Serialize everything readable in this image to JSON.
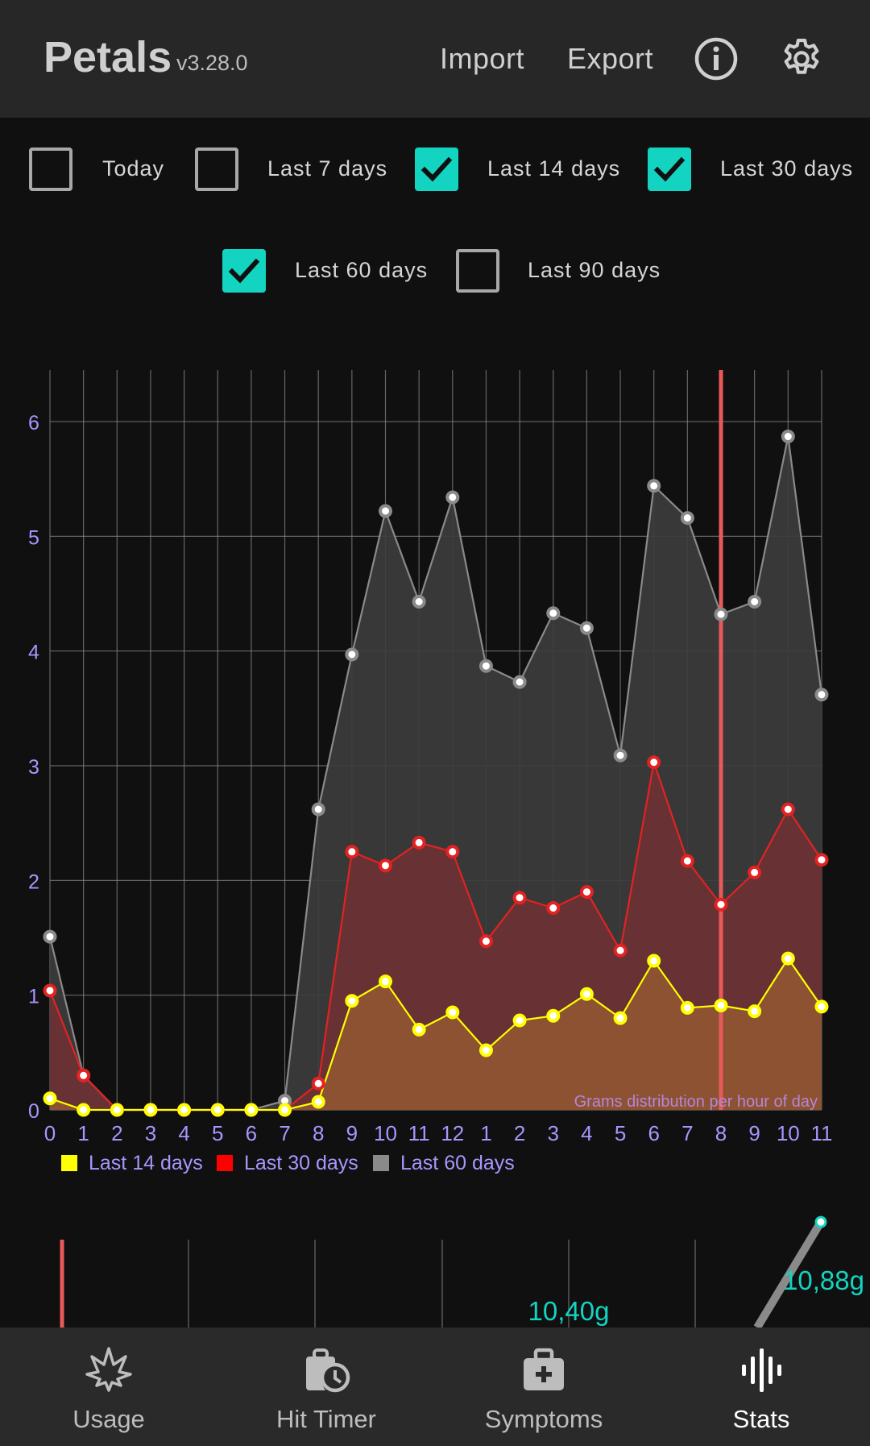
{
  "header": {
    "title": "Petals",
    "version": "v3.28.0",
    "import_label": "Import",
    "export_label": "Export",
    "info_icon": "info-icon",
    "settings_icon": "gear-icon"
  },
  "filters": [
    {
      "label": "Today",
      "checked": false
    },
    {
      "label": "Last 7 days",
      "checked": false
    },
    {
      "label": "Last 14 days",
      "checked": true
    },
    {
      "label": "Last 30 days",
      "checked": true
    },
    {
      "label": "Last 60 days",
      "checked": true
    },
    {
      "label": "Last 90 days",
      "checked": false
    }
  ],
  "chart_data": [
    {
      "type": "area",
      "title": "",
      "annotation": "Grams distribution per hour of day",
      "xlabel": "",
      "ylabel": "",
      "categories": [
        "0",
        "1",
        "2",
        "3",
        "4",
        "5",
        "6",
        "7",
        "8",
        "9",
        "10",
        "11",
        "12",
        "1",
        "2",
        "3",
        "4",
        "5",
        "6",
        "7",
        "8",
        "9",
        "10",
        "11"
      ],
      "ylim": [
        0,
        6.45
      ],
      "yticks": [
        0,
        1,
        2,
        3,
        4,
        5,
        6
      ],
      "grid": true,
      "legend_position": "bottom-left",
      "highlight_category_index": 20,
      "highlight_color": "#e85a5a",
      "series": [
        {
          "name": "Last 60 days",
          "color": "#8a8a8a",
          "fill": "#3c3c3c",
          "values": [
            1.51,
            0.3,
            0,
            0,
            0,
            0,
            0,
            0.08,
            2.62,
            3.97,
            5.22,
            4.43,
            5.34,
            3.87,
            3.73,
            4.33,
            4.2,
            3.09,
            5.44,
            5.16,
            4.32,
            4.43,
            5.87,
            3.62
          ]
        },
        {
          "name": "Last 30 days",
          "color": "#e32222",
          "fill": "#6c3134",
          "values": [
            1.04,
            0.3,
            0,
            0,
            0,
            0,
            0,
            0,
            0.23,
            2.25,
            2.13,
            2.33,
            2.25,
            1.47,
            1.85,
            1.76,
            1.9,
            1.39,
            3.03,
            2.17,
            1.79,
            2.07,
            2.62,
            2.18
          ]
        },
        {
          "name": "Last 14 days",
          "color": "#ffff00",
          "fill": "#8f5532",
          "values": [
            0.1,
            0,
            0,
            0,
            0,
            0,
            0,
            0,
            0.07,
            0.95,
            1.12,
            0.7,
            0.85,
            0.52,
            0.78,
            0.82,
            1.01,
            0.8,
            1.3,
            0.89,
            0.91,
            0.86,
            1.32,
            0.9
          ]
        }
      ]
    },
    {
      "type": "line",
      "title": "",
      "data_labels": [
        "10,40g",
        "10,88g"
      ],
      "label_color": "#13d3c1",
      "series": [
        {
          "name": "",
          "values": [
            10.4,
            10.88
          ]
        }
      ]
    }
  ],
  "nav": [
    {
      "label": "Usage",
      "icon": "cannabis-leaf-icon",
      "active": false
    },
    {
      "label": "Hit Timer",
      "icon": "stopwatch-icon",
      "active": false
    },
    {
      "label": "Symptoms",
      "icon": "medical-kit-icon",
      "active": false
    },
    {
      "label": "Stats",
      "icon": "audio-bars-icon",
      "active": true
    }
  ]
}
